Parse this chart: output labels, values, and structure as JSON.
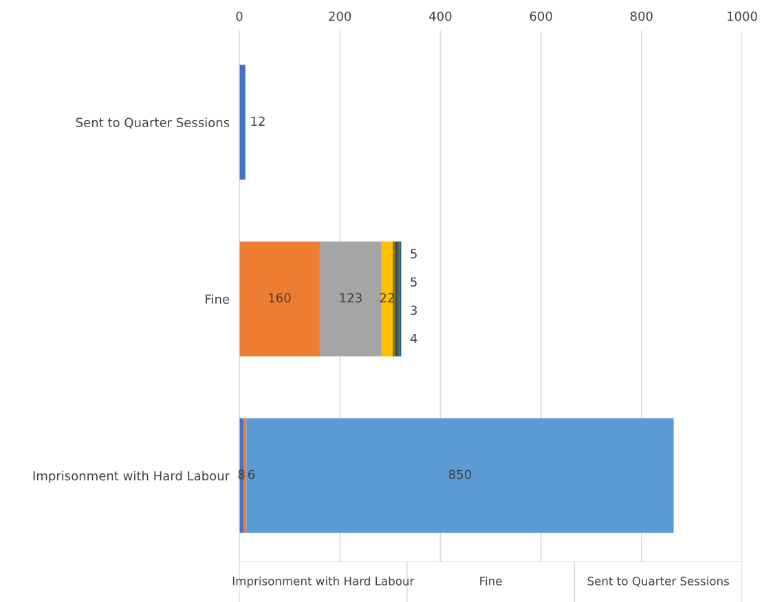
{
  "chart_data": {
    "type": "bar",
    "orientation": "horizontal",
    "stacked": true,
    "categories": [
      "Sent to Quarter Sessions",
      "Fine",
      "Imprisonment with Hard Labour"
    ],
    "series": [
      {
        "color": "#4472c4",
        "values": [
          12,
          null,
          8
        ]
      },
      {
        "color": "#ed7d31",
        "values": [
          null,
          160,
          6
        ]
      },
      {
        "color": "#a5a5a5",
        "values": [
          null,
          123,
          null
        ]
      },
      {
        "color": "#ffc000",
        "values": [
          null,
          22,
          null
        ]
      },
      {
        "color": "#997300",
        "values": [
          null,
          5,
          null
        ]
      },
      {
        "color": "#264478",
        "values": [
          null,
          5,
          null
        ]
      },
      {
        "color": "#43682b",
        "values": [
          null,
          3,
          null
        ]
      },
      {
        "color": "#255e91",
        "values": [
          null,
          4,
          null
        ]
      },
      {
        "color": "#5b9bd5",
        "values": [
          null,
          null,
          850
        ]
      }
    ],
    "xlim": [
      0,
      1000
    ],
    "xticks": [
      0,
      200,
      400,
      600,
      800,
      1000
    ],
    "grid": "x",
    "data_labels": true
  }
}
